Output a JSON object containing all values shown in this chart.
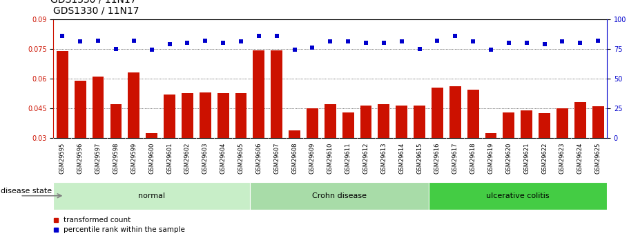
{
  "title": "GDS1330 / 11N17",
  "samples": [
    "GSM29595",
    "GSM29596",
    "GSM29597",
    "GSM29598",
    "GSM29599",
    "GSM29600",
    "GSM29601",
    "GSM29602",
    "GSM29603",
    "GSM29604",
    "GSM29605",
    "GSM29606",
    "GSM29607",
    "GSM29608",
    "GSM29609",
    "GSM29610",
    "GSM29611",
    "GSM29612",
    "GSM29613",
    "GSM29614",
    "GSM29615",
    "GSM29616",
    "GSM29617",
    "GSM29618",
    "GSM29619",
    "GSM29620",
    "GSM29621",
    "GSM29622",
    "GSM29623",
    "GSM29624",
    "GSM29625"
  ],
  "bar_values": [
    0.074,
    0.059,
    0.061,
    0.047,
    0.063,
    0.0325,
    0.052,
    0.0525,
    0.053,
    0.0525,
    0.0525,
    0.0742,
    0.0742,
    0.034,
    0.045,
    0.047,
    0.043,
    0.0465,
    0.047,
    0.0465,
    0.0465,
    0.0555,
    0.056,
    0.0545,
    0.0325,
    0.043,
    0.044,
    0.0425,
    0.045,
    0.048,
    0.046
  ],
  "dot_values": [
    86,
    81,
    82,
    75,
    82,
    74,
    79,
    80,
    82,
    80,
    81,
    86,
    86,
    74,
    76,
    81,
    81,
    80,
    80,
    81,
    75,
    82,
    86,
    81,
    74,
    80,
    80,
    79,
    81,
    80,
    82
  ],
  "groups": [
    {
      "label": "normal",
      "start": 0,
      "end": 10,
      "color": "#c8eec8"
    },
    {
      "label": "Crohn disease",
      "start": 11,
      "end": 20,
      "color": "#a8dca8"
    },
    {
      "label": "ulcerative colitis",
      "start": 21,
      "end": 30,
      "color": "#44cc44"
    }
  ],
  "ylim_left": [
    0.03,
    0.09
  ],
  "ylim_right": [
    0,
    100
  ],
  "yticks_left": [
    0.03,
    0.045,
    0.06,
    0.075,
    0.09
  ],
  "yticks_right": [
    0,
    25,
    50,
    75,
    100
  ],
  "bar_color": "#cc1100",
  "dot_color": "#0000cc",
  "sample_band_color": "#c8c8c8",
  "disease_label": "disease state",
  "legend_bar": "transformed count",
  "legend_dot": "percentile rank within the sample",
  "tick_fontsize": 7,
  "title_fontsize": 10
}
